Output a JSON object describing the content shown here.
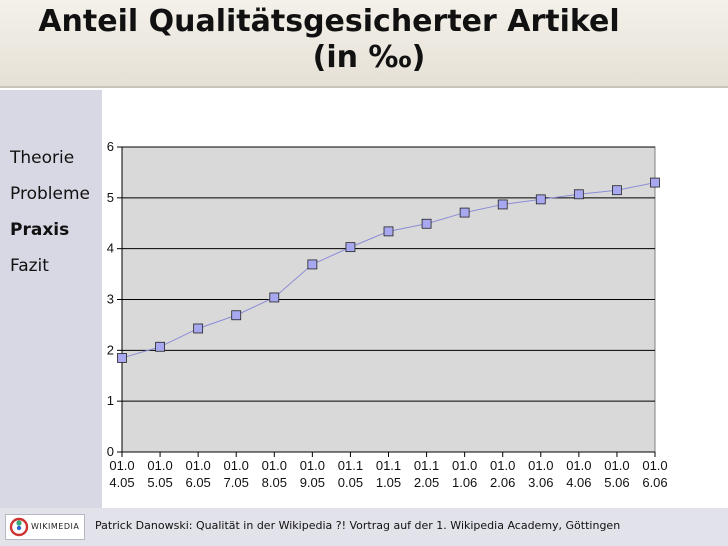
{
  "slide": {
    "title_line1": "Anteil Qualitätsgesicherter Artikel",
    "title_line2": "(in ‰)"
  },
  "nav": {
    "items": [
      {
        "label": "Theorie",
        "active": false
      },
      {
        "label": "Probleme",
        "active": false
      },
      {
        "label": "Praxis",
        "active": true
      },
      {
        "label": "Fazit",
        "active": false
      }
    ]
  },
  "footer": {
    "logo_text": "WIKIMEDIA",
    "text": "Patrick Danowski: Qualität in der Wikipedia ?! Vortrag auf der 1. Wikipedia Academy, Göttingen"
  },
  "chart_data": {
    "type": "line",
    "title": "",
    "xlabel": "",
    "ylabel": "",
    "categories": [
      [
        "01.0",
        "4.05"
      ],
      [
        "01.0",
        "5.05"
      ],
      [
        "01.0",
        "6.05"
      ],
      [
        "01.0",
        "7.05"
      ],
      [
        "01.0",
        "8.05"
      ],
      [
        "01.0",
        "9.05"
      ],
      [
        "01.1",
        "0.05"
      ],
      [
        "01.1",
        "1.05"
      ],
      [
        "01.1",
        "2.05"
      ],
      [
        "01.0",
        "1.06"
      ],
      [
        "01.0",
        "2.06"
      ],
      [
        "01.0",
        "3.06"
      ],
      [
        "01.0",
        "4.06"
      ],
      [
        "01.0",
        "5.06"
      ],
      [
        "01.0",
        "6.06"
      ]
    ],
    "series": [
      {
        "values": [
          1.85,
          2.07,
          2.43,
          2.69,
          3.04,
          3.69,
          4.03,
          4.34,
          4.49,
          4.71,
          4.87,
          4.97,
          5.07,
          5.15,
          5.3
        ]
      }
    ],
    "ylim": [
      0,
      6
    ],
    "yticks": [
      0,
      1,
      2,
      3,
      4,
      5,
      6
    ],
    "grid": true,
    "legend": "none",
    "colors": {
      "plot_bg": "#d9d9d9",
      "line": "#8c8cd8",
      "marker": "#a8a8f0",
      "grid": "#000000"
    }
  }
}
